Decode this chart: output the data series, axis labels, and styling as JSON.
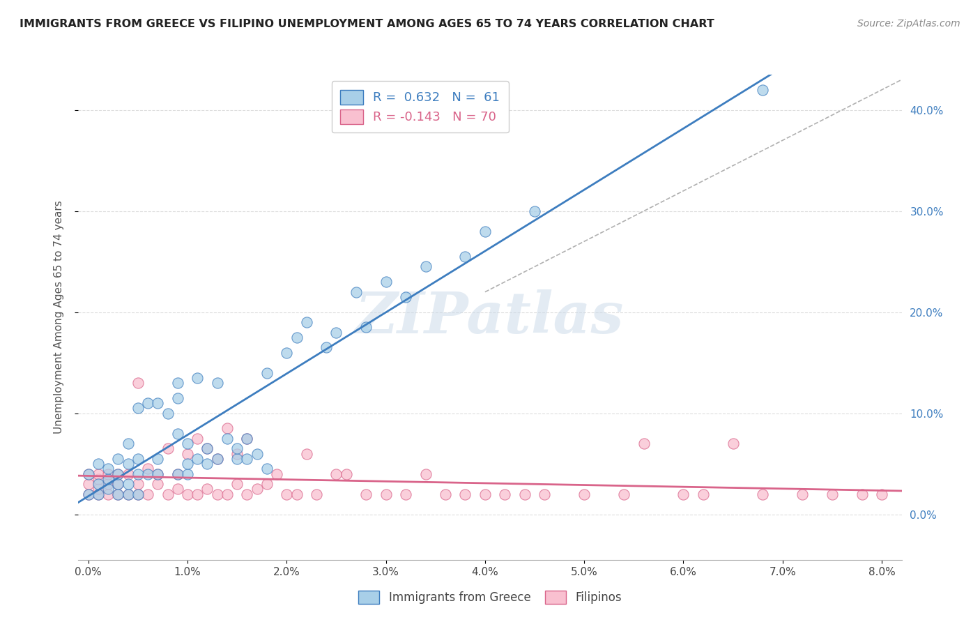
{
  "title": "IMMIGRANTS FROM GREECE VS FILIPINO UNEMPLOYMENT AMONG AGES 65 TO 74 YEARS CORRELATION CHART",
  "source": "Source: ZipAtlas.com",
  "ylabel": "Unemployment Among Ages 65 to 74 years",
  "x_tick_labels": [
    "0.0%",
    "1.0%",
    "2.0%",
    "3.0%",
    "4.0%",
    "5.0%",
    "6.0%",
    "7.0%",
    "8.0%"
  ],
  "x_tick_values": [
    0.0,
    0.01,
    0.02,
    0.03,
    0.04,
    0.05,
    0.06,
    0.07,
    0.08
  ],
  "y_tick_labels": [
    "0.0%",
    "10.0%",
    "20.0%",
    "30.0%",
    "40.0%"
  ],
  "y_tick_values": [
    0.0,
    0.1,
    0.2,
    0.3,
    0.4
  ],
  "xlim": [
    -0.001,
    0.082
  ],
  "ylim": [
    -0.045,
    0.435
  ],
  "color_greece": "#a8cfe8",
  "color_filipinos": "#f9c0d0",
  "color_line_greece": "#3d7dbf",
  "color_line_filipinos": "#d9648a",
  "color_dashed": "#b0b0b0",
  "watermark": "ZIPatlas",
  "greece_x": [
    0.0,
    0.0,
    0.001,
    0.001,
    0.001,
    0.002,
    0.002,
    0.002,
    0.003,
    0.003,
    0.003,
    0.003,
    0.004,
    0.004,
    0.004,
    0.004,
    0.005,
    0.005,
    0.005,
    0.005,
    0.006,
    0.006,
    0.007,
    0.007,
    0.007,
    0.008,
    0.009,
    0.009,
    0.009,
    0.009,
    0.01,
    0.01,
    0.01,
    0.011,
    0.011,
    0.012,
    0.012,
    0.013,
    0.013,
    0.014,
    0.015,
    0.015,
    0.016,
    0.016,
    0.017,
    0.018,
    0.018,
    0.02,
    0.021,
    0.022,
    0.024,
    0.025,
    0.027,
    0.028,
    0.03,
    0.032,
    0.034,
    0.038,
    0.04,
    0.045,
    0.068
  ],
  "greece_y": [
    0.02,
    0.04,
    0.02,
    0.03,
    0.05,
    0.025,
    0.035,
    0.045,
    0.02,
    0.03,
    0.04,
    0.055,
    0.02,
    0.03,
    0.05,
    0.07,
    0.02,
    0.04,
    0.055,
    0.105,
    0.04,
    0.11,
    0.04,
    0.055,
    0.11,
    0.1,
    0.04,
    0.08,
    0.115,
    0.13,
    0.04,
    0.05,
    0.07,
    0.055,
    0.135,
    0.05,
    0.065,
    0.055,
    0.13,
    0.075,
    0.055,
    0.065,
    0.055,
    0.075,
    0.06,
    0.045,
    0.14,
    0.16,
    0.175,
    0.19,
    0.165,
    0.18,
    0.22,
    0.185,
    0.23,
    0.215,
    0.245,
    0.255,
    0.28,
    0.3,
    0.42
  ],
  "filipinos_x": [
    0.0,
    0.0,
    0.0,
    0.001,
    0.001,
    0.001,
    0.001,
    0.002,
    0.002,
    0.002,
    0.003,
    0.003,
    0.003,
    0.004,
    0.004,
    0.005,
    0.005,
    0.005,
    0.006,
    0.006,
    0.007,
    0.007,
    0.008,
    0.008,
    0.009,
    0.009,
    0.01,
    0.01,
    0.011,
    0.011,
    0.012,
    0.012,
    0.013,
    0.013,
    0.014,
    0.014,
    0.015,
    0.015,
    0.016,
    0.016,
    0.017,
    0.018,
    0.019,
    0.02,
    0.021,
    0.022,
    0.023,
    0.025,
    0.026,
    0.028,
    0.03,
    0.032,
    0.034,
    0.036,
    0.038,
    0.04,
    0.042,
    0.044,
    0.046,
    0.05,
    0.054,
    0.056,
    0.06,
    0.062,
    0.065,
    0.068,
    0.072,
    0.075,
    0.078,
    0.08
  ],
  "filipinos_y": [
    0.02,
    0.03,
    0.04,
    0.02,
    0.025,
    0.035,
    0.04,
    0.02,
    0.03,
    0.04,
    0.02,
    0.03,
    0.04,
    0.02,
    0.04,
    0.02,
    0.03,
    0.13,
    0.02,
    0.045,
    0.03,
    0.04,
    0.02,
    0.065,
    0.025,
    0.04,
    0.02,
    0.06,
    0.02,
    0.075,
    0.025,
    0.065,
    0.02,
    0.055,
    0.02,
    0.085,
    0.03,
    0.06,
    0.02,
    0.075,
    0.025,
    0.03,
    0.04,
    0.02,
    0.02,
    0.06,
    0.02,
    0.04,
    0.04,
    0.02,
    0.02,
    0.02,
    0.04,
    0.02,
    0.02,
    0.02,
    0.02,
    0.02,
    0.02,
    0.02,
    0.02,
    0.07,
    0.02,
    0.02,
    0.07,
    0.02,
    0.02,
    0.02,
    0.02,
    0.02
  ],
  "background_color": "#ffffff",
  "grid_color": "#dddddd"
}
